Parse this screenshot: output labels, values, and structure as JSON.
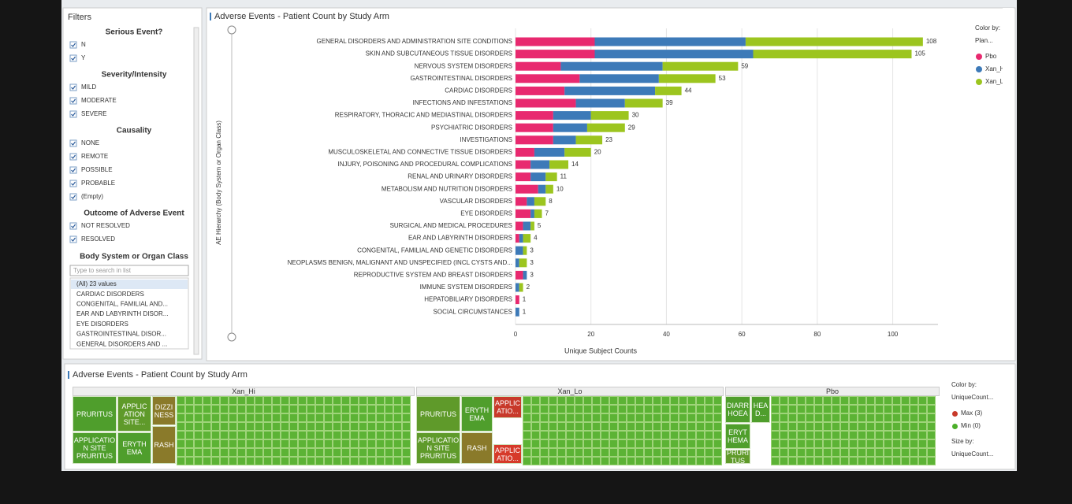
{
  "filters": {
    "title": "Filters",
    "sections": [
      {
        "heading": "Serious Event?",
        "items": [
          "N",
          "Y"
        ]
      },
      {
        "heading": "Severity/Intensity",
        "items": [
          "MILD",
          "MODERATE",
          "SEVERE"
        ]
      },
      {
        "heading": "Causality",
        "items": [
          "NONE",
          "REMOTE",
          "POSSIBLE",
          "PROBABLE",
          "(Empty)"
        ]
      },
      {
        "heading": "Outcome of Adverse Event",
        "items": [
          "NOT RESOLVED",
          "RESOLVED"
        ]
      }
    ],
    "search": {
      "heading": "Body System or Organ Class",
      "placeholder": "Type to search in list",
      "items": [
        "(All) 23 values",
        "CARDIAC DISORDERS",
        "CONGENITAL, FAMILIAL AND...",
        "EAR AND LABYRINTH DISOR...",
        "EYE DISORDERS",
        "GASTROINTESTINAL DISOR...",
        "GENERAL DISORDERS AND ..."
      ]
    }
  },
  "chart_data": {
    "type": "stacked-barh",
    "title": "Adverse Events - Patient Count by Study Arm",
    "xlabel": "Unique Subject Counts",
    "ylabel": "AE Hierarchy (Body System or Organ Class)",
    "categories": [
      "GENERAL DISORDERS AND ADMINISTRATION SITE CONDITIONS",
      "SKIN AND SUBCUTANEOUS TISSUE DISORDERS",
      "NERVOUS SYSTEM DISORDERS",
      "GASTROINTESTINAL DISORDERS",
      "CARDIAC DISORDERS",
      "INFECTIONS AND INFESTATIONS",
      "RESPIRATORY, THORACIC AND MEDIASTINAL DISORDERS",
      "PSYCHIATRIC DISORDERS",
      "INVESTIGATIONS",
      "MUSCULOSKELETAL AND CONNECTIVE TISSUE DISORDERS",
      "INJURY, POISONING AND PROCEDURAL COMPLICATIONS",
      "RENAL AND URINARY DISORDERS",
      "METABOLISM AND NUTRITION DISORDERS",
      "VASCULAR DISORDERS",
      "EYE DISORDERS",
      "SURGICAL AND MEDICAL PROCEDURES",
      "EAR AND LABYRINTH DISORDERS",
      "CONGENITAL, FAMILIAL AND GENETIC DISORDERS",
      "NEOPLASMS BENIGN, MALIGNANT AND UNSPECIFIED (INCL CYSTS AND...",
      "REPRODUCTIVE SYSTEM AND BREAST DISORDERS",
      "IMMUNE SYSTEM DISORDERS",
      "HEPATOBILIARY DISORDERS",
      "SOCIAL CIRCUMSTANCES"
    ],
    "series": [
      {
        "name": "Pbo",
        "color": "#e8296f",
        "values": [
          21,
          21,
          12,
          17,
          13,
          16,
          10,
          10,
          10,
          5,
          4,
          4,
          6,
          3,
          4,
          2,
          1,
          0,
          0,
          2,
          0,
          1,
          0
        ]
      },
      {
        "name": "Xan_H",
        "color": "#3d7ab8",
        "values": [
          40,
          42,
          27,
          21,
          24,
          13,
          10,
          9,
          6,
          8,
          5,
          4,
          2,
          2,
          1,
          2,
          1,
          2,
          1,
          1,
          1,
          0,
          1
        ]
      },
      {
        "name": "Xan_L",
        "color": "#9cc51f",
        "values": [
          47,
          42,
          20,
          15,
          7,
          10,
          10,
          10,
          7,
          7,
          5,
          3,
          2,
          3,
          2,
          1,
          2,
          1,
          2,
          0,
          1,
          0,
          0
        ]
      }
    ],
    "totals": [
      108,
      105,
      59,
      53,
      44,
      39,
      30,
      29,
      23,
      20,
      14,
      11,
      10,
      8,
      7,
      5,
      4,
      3,
      3,
      3,
      2,
      1,
      1
    ],
    "xlim": [
      0,
      112
    ],
    "xticks": [
      0,
      20,
      40,
      60,
      80,
      100
    ],
    "grid": true,
    "legend": {
      "title": "Color by:",
      "subtitle": "Plan..."
    }
  },
  "treemap": {
    "title": "Adverse Events - Patient Count by Study Arm",
    "groups": [
      {
        "name": "Xan_Hi",
        "cells": [
          {
            "label": "PRURITUS",
            "color": "#4f9e2c"
          },
          {
            "label": "APPLICATIO N SITE PRURITUS",
            "color": "#4f9e2c"
          },
          {
            "label": "APPLIC ATION SITE...",
            "color": "#5f9a2a"
          },
          {
            "label": "ERYTH EMA",
            "color": "#4f9e2c"
          },
          {
            "label": "DIZZI NESS",
            "color": "#8a7a2a"
          },
          {
            "label": "RASH",
            "color": "#8a7a2a"
          }
        ]
      },
      {
        "name": "Xan_Lo",
        "cells": [
          {
            "label": "PRURITUS",
            "color": "#5f9a2a"
          },
          {
            "label": "APPLICATIO N SITE PRURITUS",
            "color": "#5f9a2a"
          },
          {
            "label": "ERYTH EMA",
            "color": "#4f9e2c"
          },
          {
            "label": "RASH",
            "color": "#8a7a2a"
          },
          {
            "label": "APPLIC ATIO...",
            "color": "#c8392a"
          },
          {
            "label": "APPLIC ATIO...",
            "color": "#d63a2a"
          }
        ]
      },
      {
        "name": "Pbo",
        "cells": [
          {
            "label": "DIARR HOEA",
            "color": "#4f9e2c"
          },
          {
            "label": "ERYT HEMA",
            "color": "#4f9e2c"
          },
          {
            "label": "PRURI TUS",
            "color": "#5f9a2a"
          },
          {
            "label": "HEA D...",
            "color": "#4f9e2c"
          }
        ]
      }
    ],
    "legend": {
      "color_title": "Color by:",
      "color_field": "UniqueCount...",
      "max": "Max (3)",
      "min": "Min (0)",
      "size_title": "Size by:",
      "size_field": "UniqueCount..."
    }
  }
}
